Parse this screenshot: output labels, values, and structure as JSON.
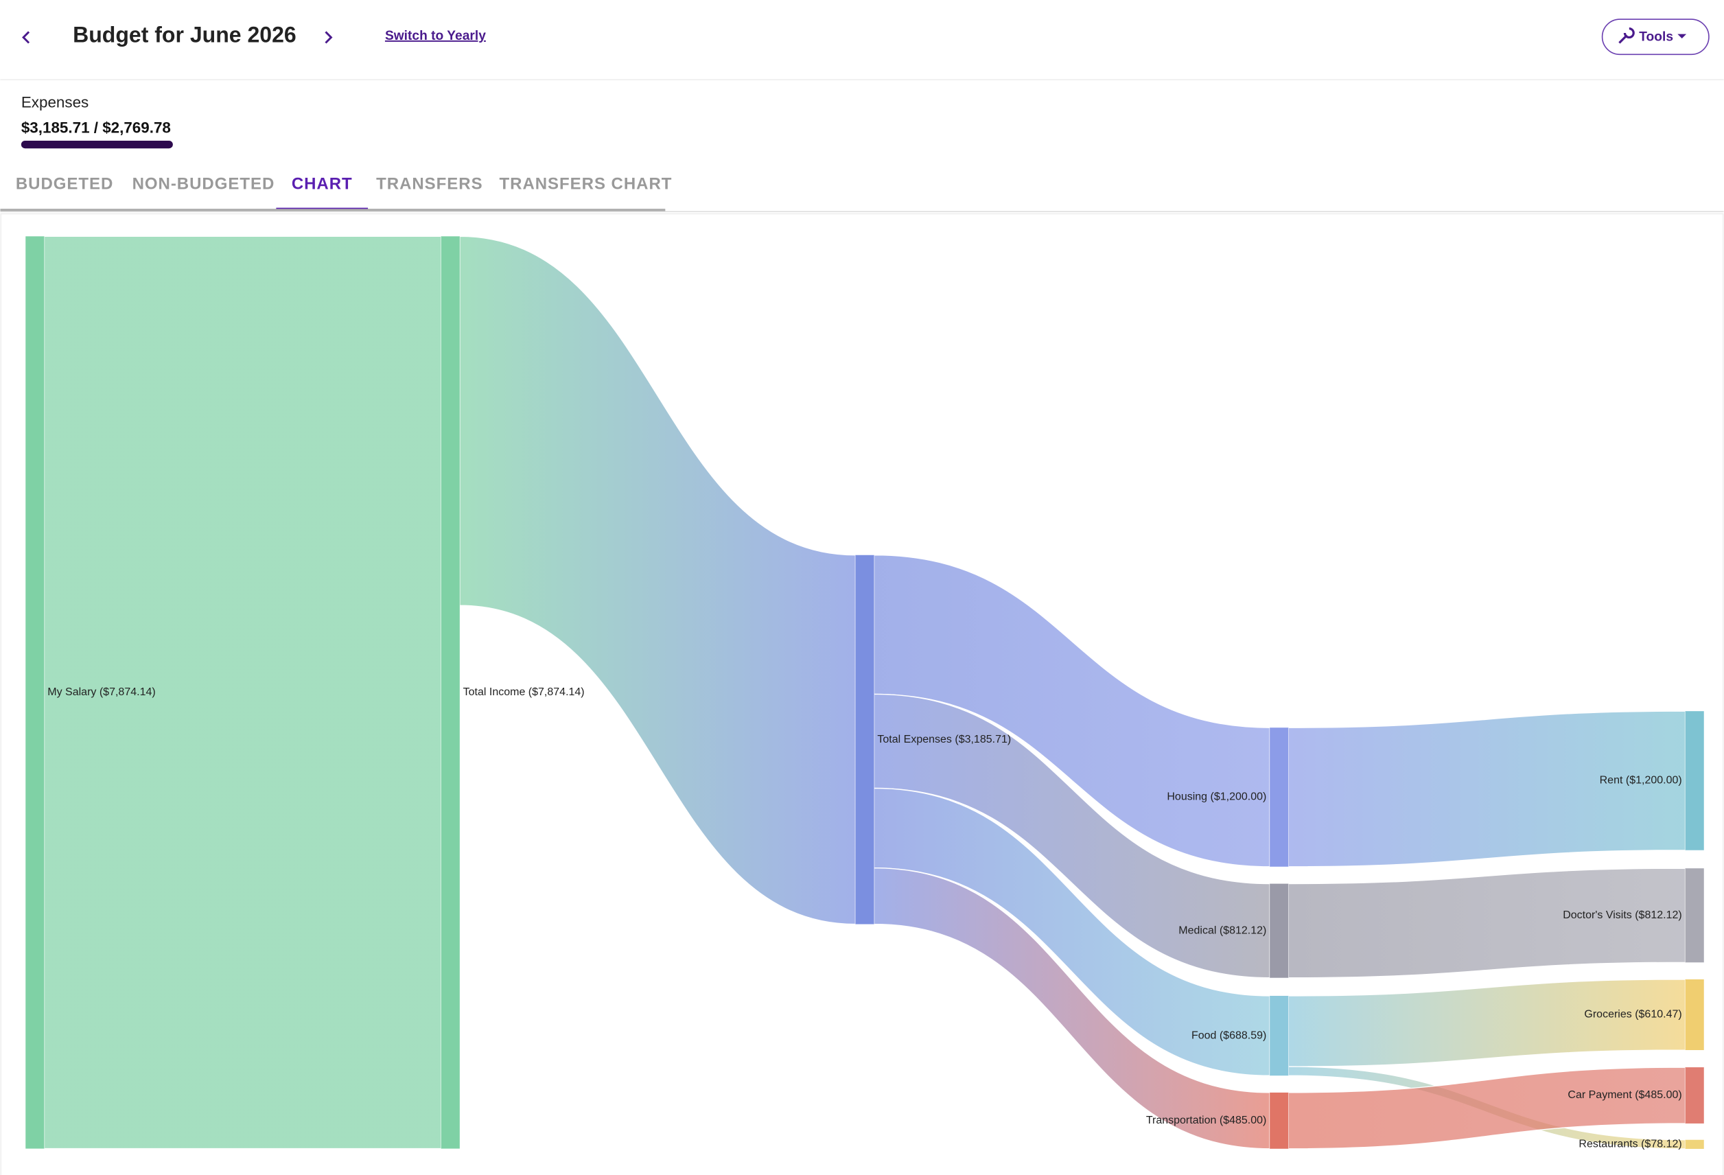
{
  "header": {
    "title": "Budget for June 2026",
    "switch_link": "Switch to Yearly",
    "tools": "Tools"
  },
  "summary": {
    "label": "Expenses",
    "amount": "$3,185.71 / $2,769.78"
  },
  "tabs": [
    "BUDGETED",
    "NON-BUDGETED",
    "CHART",
    "TRANSFERS",
    "TRANSFERS CHART"
  ],
  "active_tab": 2,
  "chart_data": {
    "type": "sankey",
    "nodes": [
      {
        "label": "My Salary ($7,874.14)",
        "value": 7874.14,
        "color": "#7fd1a5"
      },
      {
        "label": "Total Income ($7,874.14)",
        "value": 7874.14,
        "color": "#7fd1a5"
      },
      {
        "label": "Total Expenses ($3,185.71)",
        "value": 3185.71,
        "color": "#7b8fe0"
      },
      {
        "label": "Housing ($1,200.00)",
        "value": 1200.0,
        "color": "#8c9ce8"
      },
      {
        "label": "Medical ($812.12)",
        "value": 812.12,
        "color": "#9a9aa8"
      },
      {
        "label": "Food ($688.59)",
        "value": 688.59,
        "color": "#8cc8dc"
      },
      {
        "label": "Transportation ($485.00)",
        "value": 485.0,
        "color": "#e07566"
      },
      {
        "label": "Rent ($1,200.00)",
        "value": 1200.0,
        "color": "#7ec3d2"
      },
      {
        "label": "Doctor's Visits ($812.12)",
        "value": 812.12,
        "color": "#a9a9b3"
      },
      {
        "label": "Groceries ($610.47)",
        "value": 610.47,
        "color": "#f0ce70"
      },
      {
        "label": "Car Payment ($485.00)",
        "value": 485.0,
        "color": "#e07d72"
      },
      {
        "label": "Restaurants ($78.12)",
        "value": 78.12,
        "color": "#f0d47a"
      }
    ],
    "links": [
      {
        "source": 0,
        "target": 1,
        "value": 7874.14
      },
      {
        "source": 1,
        "target": 2,
        "value": 3185.71
      },
      {
        "source": 2,
        "target": 3,
        "value": 1200.0
      },
      {
        "source": 2,
        "target": 4,
        "value": 812.12
      },
      {
        "source": 2,
        "target": 5,
        "value": 688.59
      },
      {
        "source": 2,
        "target": 6,
        "value": 485.0
      },
      {
        "source": 3,
        "target": 7,
        "value": 1200.0
      },
      {
        "source": 4,
        "target": 8,
        "value": 812.12
      },
      {
        "source": 5,
        "target": 9,
        "value": 610.47
      },
      {
        "source": 5,
        "target": 11,
        "value": 78.12
      },
      {
        "source": 6,
        "target": 10,
        "value": 485.0
      }
    ]
  }
}
